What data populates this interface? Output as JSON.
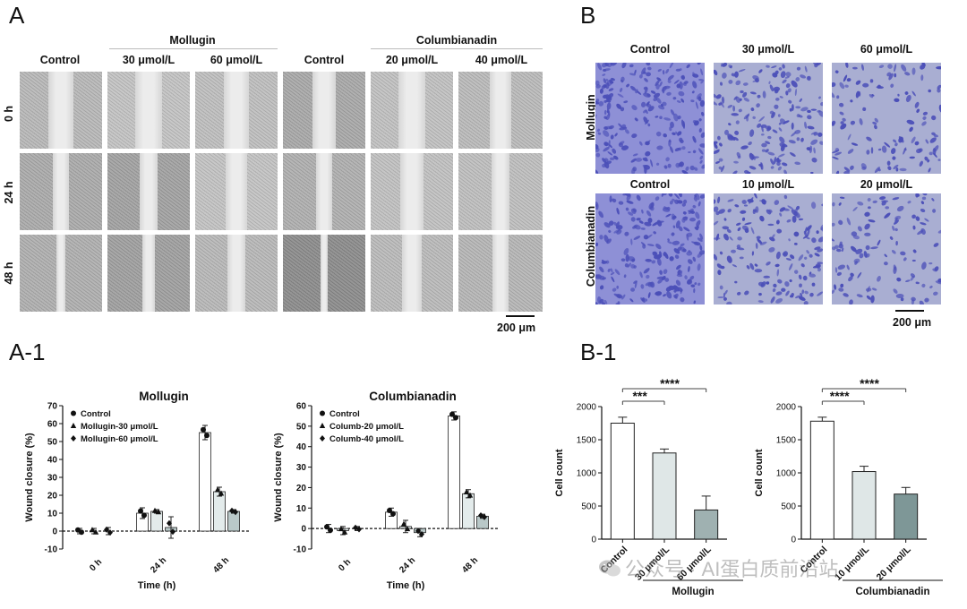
{
  "panel_a": {
    "letter": "A",
    "group_mollugin": "Mollugin",
    "group_columbianadin": "Columbianadin",
    "columns": [
      "Control",
      "30 μmol/L",
      "60 μmol/L",
      "Control",
      "20 μmol/L",
      "40 μmol/L"
    ],
    "rows": [
      "0 h",
      "24 h",
      "48 h"
    ],
    "scale": "200 μm"
  },
  "panel_b": {
    "letter": "B",
    "columns_top": [
      "Control",
      "30 μmol/L",
      "60 μmol/L"
    ],
    "columns_bottom": [
      "Control",
      "10 μmol/L",
      "20 μmol/L"
    ],
    "rows": [
      "Mollugin",
      "Columbianadin"
    ],
    "scale": "200 μm",
    "stain_color": "#4b4fb8"
  },
  "panel_a1": {
    "letter": "A-1"
  },
  "panel_b1": {
    "letter": "B-1"
  },
  "watermark": "公众号 · AI蛋白质前沿站",
  "chart_data": [
    {
      "type": "bar",
      "title": "Mollugin",
      "xlabel": "Time (h)",
      "ylabel": "Wound closure (%)",
      "categories": [
        "0 h",
        "24 h",
        "48 h"
      ],
      "ylim": [
        -10,
        70
      ],
      "yticks": [
        -10,
        0,
        10,
        20,
        30,
        40,
        50,
        60,
        70
      ],
      "legend_position": "top-left",
      "series": [
        {
          "name": "Control",
          "marker": "circle",
          "values": [
            0,
            10,
            55
          ],
          "errors": [
            1.5,
            3,
            4
          ]
        },
        {
          "name": "Mollugin-30 μmol/L",
          "marker": "triangle",
          "values": [
            0,
            11,
            22
          ],
          "errors": [
            1.5,
            1,
            2.5
          ]
        },
        {
          "name": "Mollugin-60 μmol/L",
          "marker": "diamond",
          "values": [
            0,
            2,
            11
          ],
          "errors": [
            2,
            6,
            1
          ]
        }
      ]
    },
    {
      "type": "bar",
      "title": "Columbianadin",
      "xlabel": "Time (h)",
      "ylabel": "Wound closure (%)",
      "categories": [
        "0 h",
        "24 h",
        "48 h"
      ],
      "ylim": [
        -10,
        60
      ],
      "yticks": [
        -10,
        0,
        10,
        20,
        30,
        40,
        50,
        60
      ],
      "legend_position": "top-left",
      "series": [
        {
          "name": "Control",
          "marker": "circle",
          "values": [
            0,
            8,
            55
          ],
          "errors": [
            2,
            2,
            2
          ]
        },
        {
          "name": "Columb-20 μmol/L",
          "marker": "triangle",
          "values": [
            -1,
            1,
            17
          ],
          "errors": [
            2,
            3,
            2
          ]
        },
        {
          "name": "Columb-40 μmol/L",
          "marker": "diamond",
          "values": [
            0,
            -2,
            6
          ],
          "errors": [
            1,
            2,
            1
          ]
        }
      ]
    },
    {
      "type": "bar",
      "title": "",
      "group": "Mollugin",
      "ylabel": "Cell count",
      "categories": [
        "Control",
        "30 μmol/L",
        "60 μmol/L"
      ],
      "values": [
        1750,
        1300,
        440
      ],
      "errors": [
        90,
        60,
        210
      ],
      "ylim": [
        0,
        2000
      ],
      "yticks": [
        0,
        500,
        1000,
        1500,
        2000
      ],
      "significance": [
        {
          "from": 0,
          "to": 1,
          "label": "***"
        },
        {
          "from": 0,
          "to": 2,
          "label": "****"
        }
      ],
      "bar_colors": [
        "#ffffff",
        "#dfe7e7",
        "#9fb1b1"
      ]
    },
    {
      "type": "bar",
      "title": "",
      "group": "Columbianadin",
      "ylabel": "Cell count",
      "categories": [
        "Control",
        "10 μmol/L",
        "20 μmol/L"
      ],
      "values": [
        1780,
        1020,
        680
      ],
      "errors": [
        60,
        80,
        100
      ],
      "ylim": [
        0,
        2000
      ],
      "yticks": [
        0,
        500,
        1000,
        1500,
        2000
      ],
      "significance": [
        {
          "from": 0,
          "to": 1,
          "label": "****"
        },
        {
          "from": 0,
          "to": 2,
          "label": "****"
        }
      ],
      "bar_colors": [
        "#ffffff",
        "#dfe7e7",
        "#7e9797"
      ]
    }
  ]
}
